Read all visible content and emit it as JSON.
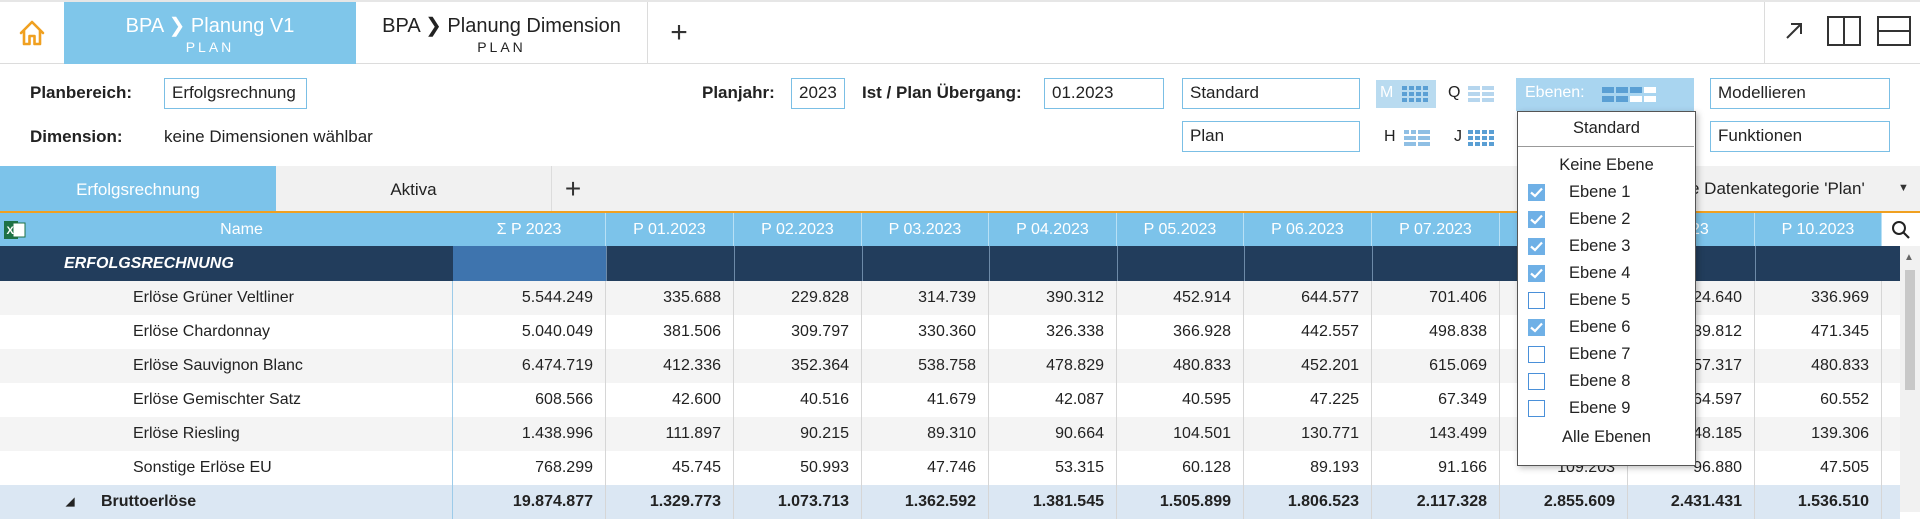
{
  "tabs": [
    {
      "title": "BPA ❯ Planung V1",
      "subtitle": "PLAN"
    },
    {
      "title": "BPA ❯ Planung Dimension",
      "subtitle": "PLAN"
    }
  ],
  "controls": {
    "planbereich_label": "Planbereich:",
    "planbereich_value": "Erfolgsrechnung",
    "dimension_label": "Dimension:",
    "dimension_value": "keine Dimensionen wählbar",
    "planjahr_label": "Planjahr:",
    "planjahr_value": "2023",
    "uebergang_label": "Ist / Plan Übergang:",
    "uebergang_value": "01.2023",
    "view_value": "Standard",
    "category_value": "Plan",
    "period_m": "M",
    "period_q": "Q",
    "period_h": "H",
    "period_j": "J",
    "ebenen_label": "Ebenen:",
    "modellieren": "Modellieren",
    "funktionen": "Funktionen",
    "datenkategorie": "e Datenkategorie 'Plan'"
  },
  "sheet_tabs": [
    "Erfolgsrechnung",
    "Aktiva"
  ],
  "table": {
    "headers": [
      "Name",
      "Σ P  2023",
      "P 01.2023",
      "P 02.2023",
      "P 03.2023",
      "P 04.2023",
      "P 05.2023",
      "P 06.2023",
      "P 07.2023",
      "",
      "2023",
      "P 10.2023"
    ],
    "section": "ERFOLGSRECHNUNG",
    "rows": [
      {
        "name": "Erlöse Grüner Veltliner",
        "values": [
          "5.544.249",
          "335.688",
          "229.828",
          "314.739",
          "390.312",
          "452.914",
          "644.577",
          "701.406",
          "",
          "24.640",
          "336.969"
        ]
      },
      {
        "name": "Erlöse Chardonnay",
        "values": [
          "5.040.049",
          "381.506",
          "309.797",
          "330.360",
          "326.338",
          "366.928",
          "442.557",
          "498.838",
          "",
          "39.812",
          "471.345"
        ]
      },
      {
        "name": "Erlöse Sauvignon Blanc",
        "values": [
          "6.474.719",
          "412.336",
          "352.364",
          "538.758",
          "478.829",
          "480.833",
          "452.201",
          "615.069",
          "",
          "57.317",
          "480.833"
        ]
      },
      {
        "name": "Erlöse Gemischter Satz",
        "values": [
          "608.566",
          "42.600",
          "40.516",
          "41.679",
          "42.087",
          "40.595",
          "47.225",
          "67.349",
          "",
          "64.597",
          "60.552"
        ]
      },
      {
        "name": "Erlöse Riesling",
        "values": [
          "1.438.996",
          "111.897",
          "90.215",
          "89.310",
          "90.664",
          "104.501",
          "130.771",
          "143.499",
          "",
          "48.185",
          "139.306"
        ]
      },
      {
        "name": "Sonstige Erlöse EU",
        "values": [
          "768.299",
          "45.745",
          "50.993",
          "47.746",
          "53.315",
          "60.128",
          "89.193",
          "91.166",
          "109.203",
          "96.880",
          "47.505"
        ]
      }
    ],
    "total": {
      "name": "Bruttoerlöse",
      "values": [
        "19.874.877",
        "1.329.773",
        "1.073.713",
        "1.362.592",
        "1.381.545",
        "1.505.899",
        "1.806.523",
        "2.117.328",
        "2.855.609",
        "2.431.431",
        "1.536.510"
      ]
    }
  },
  "dropdown": {
    "standard": "Standard",
    "keine": "Keine Ebene",
    "items": [
      {
        "label": "Ebene 1",
        "checked": true
      },
      {
        "label": "Ebene 2",
        "checked": true
      },
      {
        "label": "Ebene 3",
        "checked": true
      },
      {
        "label": "Ebene 4",
        "checked": true
      },
      {
        "label": "Ebene 5",
        "checked": false
      },
      {
        "label": "Ebene 6",
        "checked": true
      },
      {
        "label": "Ebene 7",
        "checked": false
      },
      {
        "label": "Ebene 8",
        "checked": false
      },
      {
        "label": "Ebene 9",
        "checked": false
      }
    ],
    "alle": "Alle Ebenen"
  },
  "colors": {
    "accent": "#7cc3ea",
    "home": "#f5a623",
    "section": "#223d5c",
    "total_bg": "#dbe7f3"
  }
}
